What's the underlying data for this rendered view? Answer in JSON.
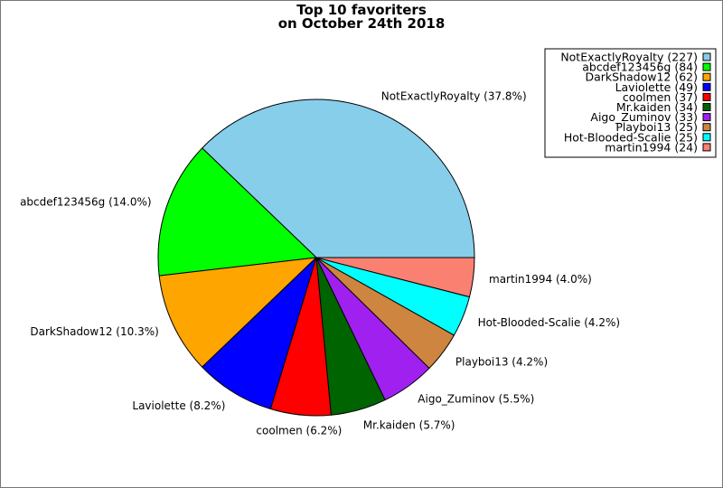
{
  "chart_data": {
    "type": "pie",
    "title": "Top 10 favoriters",
    "subtitle": "on October 24th 2018",
    "slices": [
      {
        "name": "NotExactlyRoyalty",
        "count": 227,
        "percent": "37.8%",
        "color": "#87ceeb"
      },
      {
        "name": "abcdef123456g",
        "count": 84,
        "percent": "14.0%",
        "color": "#00ff00"
      },
      {
        "name": "DarkShadow12",
        "count": 62,
        "percent": "10.3%",
        "color": "#ffa500"
      },
      {
        "name": "Laviolette",
        "count": 49,
        "percent": "8.2%",
        "color": "#0000ff"
      },
      {
        "name": "coolmen",
        "count": 37,
        "percent": "6.2%",
        "color": "#ff0000"
      },
      {
        "name": "Mr.kaiden",
        "count": 34,
        "percent": "5.7%",
        "color": "#006400"
      },
      {
        "name": "Aigo_Zuminov",
        "count": 33,
        "percent": "5.5%",
        "color": "#a020f0"
      },
      {
        "name": "Playboi13",
        "count": 25,
        "percent": "4.2%",
        "color": "#cd853f"
      },
      {
        "name": "Hot-Blooded-Scalie",
        "count": 25,
        "percent": "4.2%",
        "color": "#00ffff"
      },
      {
        "name": "martin1994",
        "count": 24,
        "percent": "4.0%",
        "color": "#fa8072"
      }
    ],
    "legend_position": "top-right",
    "start_angle_deg": 0,
    "direction": "counterclockwise"
  }
}
